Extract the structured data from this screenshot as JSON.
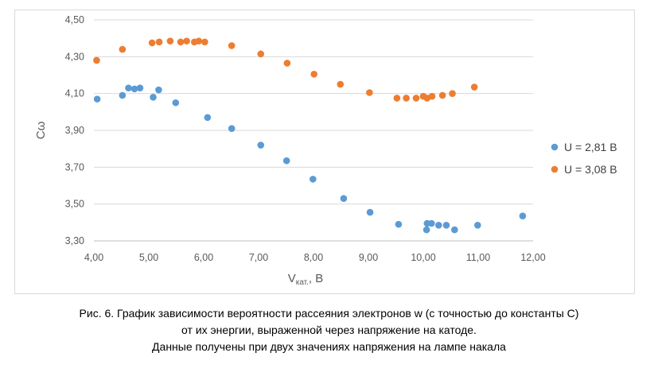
{
  "chart_data": {
    "type": "scatter",
    "title": "",
    "xlabel_main": "V",
    "xlabel_sub": "кат.",
    "xlabel_unit": ", В",
    "ylabel": "Cω",
    "xlim": [
      4.0,
      12.0
    ],
    "ylim": [
      3.3,
      4.5
    ],
    "x_ticks": [
      "4,00",
      "5,00",
      "6,00",
      "7,00",
      "8,00",
      "9,00",
      "10,00",
      "11,00",
      "12,00"
    ],
    "y_ticks": [
      "3,30",
      "3,50",
      "3,70",
      "3,90",
      "4,10",
      "4,30",
      "4,50"
    ],
    "grid": "horizontal",
    "legend_position": "right",
    "series": [
      {
        "name": "U = 2,81 В",
        "color": "#5b9bd5",
        "points": [
          [
            4.06,
            4.07
          ],
          [
            4.52,
            4.09
          ],
          [
            4.63,
            4.13
          ],
          [
            4.74,
            4.125
          ],
          [
            4.84,
            4.13
          ],
          [
            5.08,
            4.08
          ],
          [
            5.18,
            4.12
          ],
          [
            5.49,
            4.05
          ],
          [
            6.07,
            3.97
          ],
          [
            6.51,
            3.91
          ],
          [
            7.04,
            3.82
          ],
          [
            7.51,
            3.735
          ],
          [
            7.99,
            3.635
          ],
          [
            8.55,
            3.53
          ],
          [
            9.03,
            3.455
          ],
          [
            9.55,
            3.39
          ],
          [
            10.07,
            3.395
          ],
          [
            10.15,
            3.395
          ],
          [
            10.06,
            3.36
          ],
          [
            10.28,
            3.385
          ],
          [
            10.42,
            3.385
          ],
          [
            10.57,
            3.36
          ],
          [
            10.99,
            3.385
          ],
          [
            11.81,
            3.435
          ]
        ]
      },
      {
        "name": "U = 3,08 В",
        "color": "#ed7d31",
        "points": [
          [
            4.05,
            4.28
          ],
          [
            4.52,
            4.34
          ],
          [
            5.06,
            4.375
          ],
          [
            5.19,
            4.38
          ],
          [
            5.39,
            4.385
          ],
          [
            5.58,
            4.38
          ],
          [
            5.69,
            4.385
          ],
          [
            5.83,
            4.38
          ],
          [
            5.91,
            4.385
          ],
          [
            6.02,
            4.38
          ],
          [
            6.51,
            4.36
          ],
          [
            7.04,
            4.315
          ],
          [
            7.52,
            4.265
          ],
          [
            8.01,
            4.205
          ],
          [
            8.49,
            4.15
          ],
          [
            9.02,
            4.105
          ],
          [
            9.52,
            4.075
          ],
          [
            9.69,
            4.075
          ],
          [
            9.87,
            4.075
          ],
          [
            10.0,
            4.085
          ],
          [
            10.07,
            4.075
          ],
          [
            10.16,
            4.085
          ],
          [
            10.35,
            4.09
          ],
          [
            10.53,
            4.1
          ],
          [
            10.93,
            4.135
          ]
        ]
      }
    ]
  },
  "caption": {
    "line1": "Рис. 6. График зависимости вероятности рассеяния электронов w (с точностью до константы С)",
    "line2": "от их энергии, выраженной через напряжение на катоде.",
    "line3": "Данные получены при двух значениях напряжения на лампе накала"
  },
  "colors": {
    "gridline": "#d9d9d9",
    "axis_line": "#bfbfbf",
    "text": "#595959"
  }
}
